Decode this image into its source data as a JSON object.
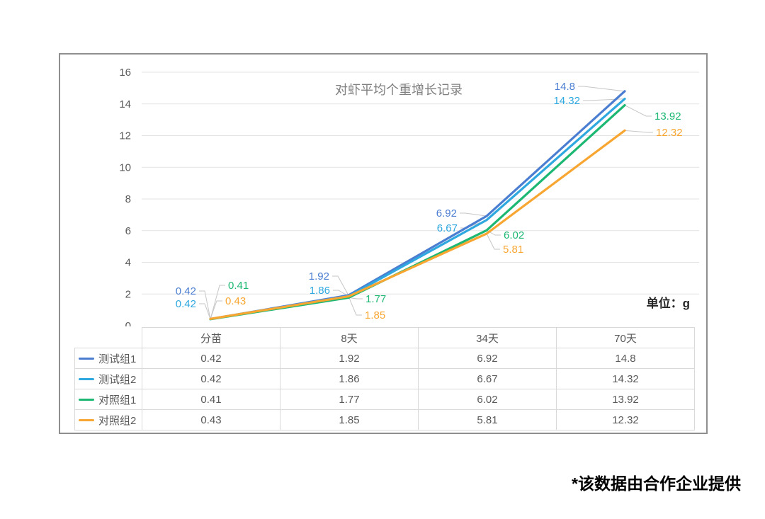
{
  "footnote": "*该数据由合作企业提供",
  "chart_data": {
    "type": "line",
    "title": "对虾平均个重增长记录",
    "unit": "单位：g",
    "categories": [
      "分苗",
      "8天",
      "34天",
      "70天"
    ],
    "series": [
      {
        "name": "测试组1",
        "color": "#4b7ed1",
        "values": [
          0.42,
          1.92,
          6.92,
          14.8
        ]
      },
      {
        "name": "测试组2",
        "color": "#2ea8df",
        "values": [
          0.42,
          1.86,
          6.67,
          14.32
        ]
      },
      {
        "name": "对照组1",
        "color": "#1cb873",
        "values": [
          0.41,
          1.77,
          6.02,
          13.92
        ]
      },
      {
        "name": "对照组2",
        "color": "#f8a632",
        "values": [
          0.43,
          1.85,
          5.81,
          12.32
        ]
      }
    ],
    "ylim": [
      0,
      16
    ],
    "y_tick_step": 2,
    "y_ticks": [
      0,
      2,
      4,
      6,
      8,
      10,
      12,
      14,
      16
    ],
    "grid": true,
    "data_labels": true,
    "legend_position": "table-rows-left",
    "xlabel": "",
    "ylabel": ""
  }
}
